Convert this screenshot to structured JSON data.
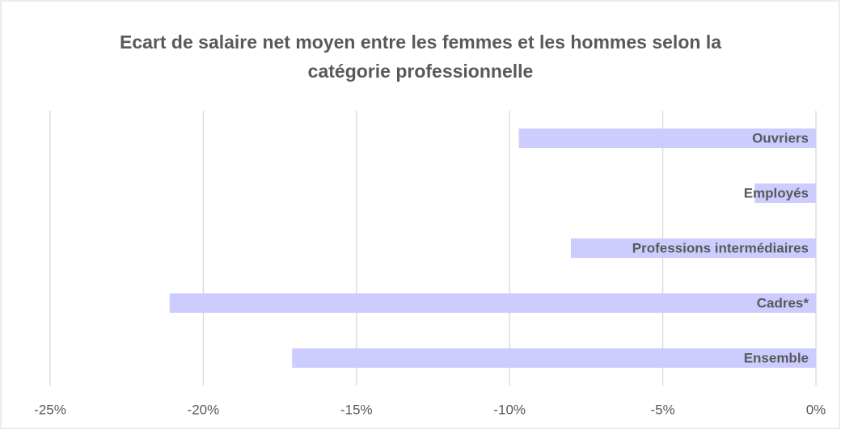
{
  "chart_data": {
    "type": "hbar",
    "title": "Ecart de salaire net moyen entre les femmes et les hommes selon la catégorie professionnelle",
    "categories": [
      "Ouvriers",
      "Employés",
      "Professions intermédiaires",
      "Cadres*",
      "Ensemble"
    ],
    "values": [
      -9.7,
      -2.0,
      -8.0,
      -21.1,
      -17.1
    ],
    "color": "#ccccff",
    "xlim": [
      -25,
      0
    ],
    "xticks": [
      {
        "value": -25,
        "label": "-25%"
      },
      {
        "value": -20,
        "label": "-20%"
      },
      {
        "value": -15,
        "label": "-15%"
      },
      {
        "value": -10,
        "label": "-10%"
      },
      {
        "value": -5,
        "label": "-5%"
      },
      {
        "value": 0,
        "label": "0%"
      }
    ],
    "grid": true
  }
}
